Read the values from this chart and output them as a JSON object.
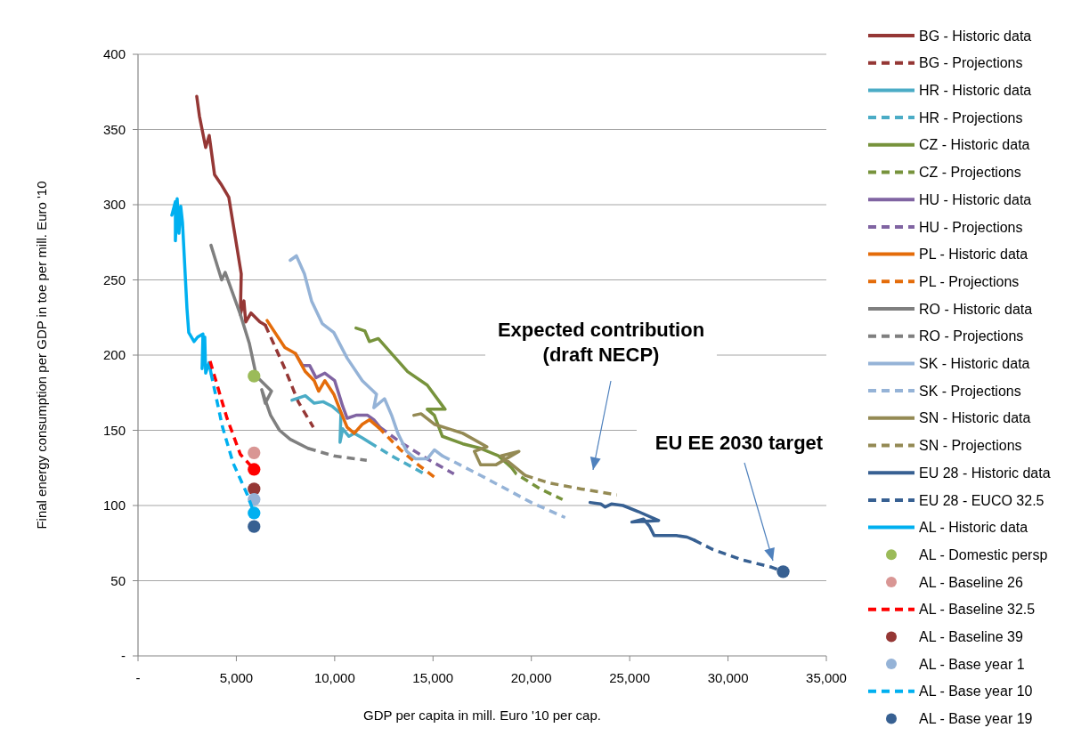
{
  "chart_data": {
    "type": "line",
    "xlabel": "GDP per capita in mill. Euro '10 per cap.",
    "ylabel": "Final energy consumption per GDP in toe per mill. Euro '10",
    "xlim": [
      0,
      35000
    ],
    "ylim": [
      0,
      400
    ],
    "xticks": [
      {
        "value": 0,
        "label": "-"
      },
      {
        "value": 5000,
        "label": "5,000"
      },
      {
        "value": 10000,
        "label": "10,000"
      },
      {
        "value": 15000,
        "label": "15,000"
      },
      {
        "value": 20000,
        "label": "20,000"
      },
      {
        "value": 25000,
        "label": "25,000"
      },
      {
        "value": 30000,
        "label": "30,000"
      },
      {
        "value": 35000,
        "label": "35,000"
      }
    ],
    "yticks": [
      {
        "value": 0,
        "label": "-"
      },
      50,
      100,
      150,
      200,
      250,
      300,
      350,
      400
    ],
    "grid": "y",
    "legend": "right",
    "annotations": [
      "Expected contribution (draft NECP)",
      "EU EE 2030 target"
    ],
    "series": [
      {
        "name": "BG - Historic data",
        "color": "#953735",
        "line_style": "solid",
        "x": [
          2986,
          3122,
          3439,
          3620,
          3891,
          4253,
          4615,
          5249,
          5204,
          5385,
          5475,
          5747,
          6199,
          6471
        ],
        "values": [
          372,
          359,
          338,
          346,
          320,
          313,
          305,
          254,
          227,
          236,
          222,
          228,
          222,
          220
        ]
      },
      {
        "name": "BG - Projections",
        "color": "#953735",
        "line_style": "dashed",
        "x": [
          6471,
          7466,
          8145,
          8914
        ],
        "values": [
          220,
          191,
          169,
          152
        ]
      },
      {
        "name": "HR - Historic data",
        "color": "#4bacc6",
        "line_style": "solid",
        "x": [
          7828,
          8507,
          8959,
          9412,
          9864,
          10317,
          10271,
          10407,
          10724,
          10995,
          11403,
          11765
        ],
        "values": [
          170,
          173,
          168,
          169,
          166,
          161,
          142,
          151,
          146,
          148,
          145,
          142
        ]
      },
      {
        "name": "HR - Projections",
        "color": "#4bacc6",
        "line_style": "dashed",
        "x": [
          11765,
          12896,
          14570
        ],
        "values": [
          142,
          133,
          121
        ]
      },
      {
        "name": "CZ - Historic data",
        "color": "#77933c",
        "line_style": "solid",
        "x": [
          11086,
          11538,
          11765,
          12217,
          12896,
          13710,
          14706,
          15611,
          14706,
          15068,
          15475,
          16516,
          17421,
          18326,
          19005
        ],
        "values": [
          218,
          216,
          209,
          211,
          201,
          189,
          180,
          164,
          164,
          160,
          146,
          141,
          138,
          133,
          125
        ]
      },
      {
        "name": "CZ - Projections",
        "color": "#77933c",
        "line_style": "dashed",
        "x": [
          19005,
          19231,
          20452,
          21584
        ],
        "values": [
          125,
          121,
          111,
          104
        ]
      },
      {
        "name": "HU - Historic data",
        "color": "#8064a2",
        "line_style": "solid",
        "x": [
          8009,
          8371,
          8733,
          9050,
          9502,
          10000,
          10407,
          10633,
          11086,
          11674,
          11991,
          12308
        ],
        "values": [
          201,
          193,
          193,
          185,
          188,
          183,
          166,
          158,
          160,
          160,
          157,
          152
        ]
      },
      {
        "name": "HU - Projections",
        "color": "#8064a2",
        "line_style": "dashed",
        "x": [
          12308,
          13348,
          14706,
          16063
        ],
        "values": [
          152,
          142,
          131,
          121
        ]
      },
      {
        "name": "PL - Historic data",
        "color": "#e46c0a",
        "line_style": "solid",
        "x": [
          6561,
          7466,
          8009,
          8507,
          8959,
          9186,
          9502,
          9955,
          10317,
          10633,
          10995,
          11403,
          11765,
          12217
        ],
        "values": [
          223,
          205,
          201,
          189,
          183,
          176,
          183,
          174,
          162,
          152,
          148,
          154,
          157,
          152
        ]
      },
      {
        "name": "PL - Projections",
        "color": "#e46c0a",
        "line_style": "dashed",
        "x": [
          12217,
          13348,
          14253,
          15158
        ],
        "values": [
          152,
          137,
          127,
          118
        ]
      },
      {
        "name": "RO - Historic data",
        "color": "#7f7f7f",
        "line_style": "solid",
        "x": [
          3710,
          4253,
          4434,
          5204,
          5656,
          6018,
          6787,
          6471,
          6290,
          6742,
          7195,
          7738,
          8643
        ],
        "values": [
          273,
          250,
          255,
          227,
          208,
          186,
          176,
          168,
          177,
          160,
          150,
          144,
          138
        ]
      },
      {
        "name": "RO - Projections",
        "color": "#7f7f7f",
        "line_style": "dashed",
        "x": [
          8643,
          9955,
          11629
        ],
        "values": [
          138,
          133,
          130
        ]
      },
      {
        "name": "SK - Historic data",
        "color": "#95b3d7",
        "line_style": "solid",
        "x": [
          7738,
          8054,
          8462,
          8824,
          9367,
          9955,
          10633,
          11403,
          12127,
          11991,
          12534,
          12896,
          13213,
          13665,
          14118,
          14706,
          15068,
          15475
        ],
        "values": [
          263,
          266,
          254,
          236,
          221,
          215,
          198,
          183,
          174,
          165,
          171,
          160,
          148,
          136,
          131,
          131,
          137,
          133
        ]
      },
      {
        "name": "SK - Projections",
        "color": "#95b3d7",
        "line_style": "dashed",
        "x": [
          15475,
          17421,
          20000,
          21719
        ],
        "values": [
          133,
          120,
          102,
          92
        ]
      },
      {
        "name": "SN - Historic data",
        "color": "#948a54",
        "line_style": "solid",
        "x": [
          14027,
          14389,
          15068,
          16516,
          17738,
          17104,
          17421,
          18190,
          19367,
          18462,
          19683
        ],
        "values": [
          160,
          161,
          154,
          148,
          139,
          136,
          127,
          127,
          136,
          133,
          120
        ]
      },
      {
        "name": "SN - Projections",
        "color": "#948a54",
        "line_style": "dashed",
        "x": [
          19683,
          20905,
          22534,
          24344
        ],
        "values": [
          120,
          115,
          111,
          107
        ]
      },
      {
        "name": "EU 28 - Historic data",
        "color": "#376092",
        "line_style": "solid",
        "x": [
          22986,
          23529,
          23756,
          24072,
          24661,
          25430,
          26471,
          25113,
          25701,
          26018,
          26244,
          27376,
          27919,
          28281
        ],
        "values": [
          102,
          101,
          99,
          101,
          100,
          96,
          90,
          89,
          91,
          86,
          80,
          80,
          79,
          77
        ]
      },
      {
        "name": "EU 28 - EUCO 32.5",
        "color": "#376092",
        "line_style": "dashed",
        "x": [
          28281,
          29186,
          30679,
          32217,
          32805
        ],
        "values": [
          77,
          71,
          64,
          59,
          56
        ]
      },
      {
        "type": "scatter",
        "color": "#376092",
        "marker": "circle",
        "x": [
          32805
        ],
        "values": [
          56
        ]
      },
      {
        "name": "AL - Historic data",
        "color": "#00b0f0",
        "line_style": "solid",
        "x": [
          1719,
          1900,
          1900,
          1991,
          2081,
          2172,
          2262,
          2489,
          2579,
          2851,
          3032,
          3303,
          3258,
          3394,
          3439,
          3620,
          3710
        ],
        "values": [
          293,
          302,
          276,
          304,
          281,
          299,
          288,
          231,
          215,
          209,
          212,
          214,
          191,
          212,
          188,
          195,
          188
        ]
      },
      {
        "name": "AL - Domestic persp",
        "type": "scatter",
        "color": "#9bbb59",
        "marker": "circle",
        "x": [
          5900
        ],
        "values": [
          186
        ]
      },
      {
        "name": "AL - Baseline 26",
        "type": "scatter",
        "color": "#d99694",
        "marker": "circle",
        "x": [
          5900
        ],
        "values": [
          135
        ]
      },
      {
        "name": "AL - Baseline 32.5",
        "color": "#ff0000",
        "line_style": "dashed",
        "x": [
          3665,
          4525,
          5204,
          5900
        ],
        "values": [
          196,
          158,
          134,
          124
        ]
      },
      {
        "type": "scatter",
        "color": "#ff0000",
        "marker": "circle",
        "x": [
          5900
        ],
        "values": [
          124
        ]
      },
      {
        "name": "AL - Baseline 39",
        "type": "scatter",
        "color": "#953735",
        "marker": "circle",
        "x": [
          5900
        ],
        "values": [
          111
        ]
      },
      {
        "name": "AL - Base year 1",
        "type": "scatter",
        "color": "#95b3d7",
        "marker": "circle",
        "x": [
          5900
        ],
        "values": [
          104
        ]
      },
      {
        "name": "AL - Base year 10",
        "color": "#00b0f0",
        "line_style": "dashed",
        "x": [
          3710,
          4299,
          4842,
          5566,
          5900
        ],
        "values": [
          188,
          152,
          128,
          107,
          95
        ]
      },
      {
        "type": "scatter",
        "color": "#00b0f0",
        "marker": "circle",
        "x": [
          5900
        ],
        "values": [
          95
        ]
      },
      {
        "name": "AL - Base year 19",
        "type": "scatter",
        "color": "#376092",
        "marker": "circle",
        "x": [
          5900
        ],
        "values": [
          86
        ]
      }
    ]
  }
}
